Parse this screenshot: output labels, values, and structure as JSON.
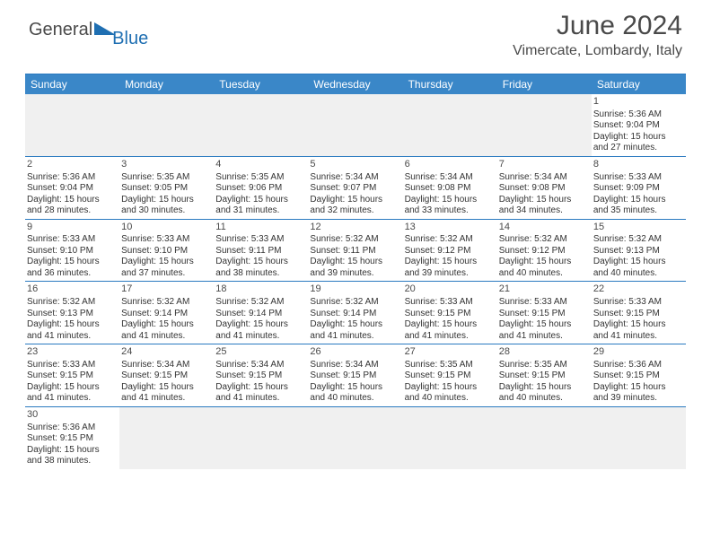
{
  "logo": {
    "word1": "General",
    "word2": "Blue"
  },
  "title": "June 2024",
  "subtitle": "Vimercate, Lombardy, Italy",
  "colors": {
    "header_bg": "#3a87c8",
    "header_text": "#ffffff",
    "rule": "#2a7ac0",
    "empty_bg": "#f0f0f0",
    "title_color": "#4a4a4a",
    "logo_blue": "#1f6fb2"
  },
  "day_names": [
    "Sunday",
    "Monday",
    "Tuesday",
    "Wednesday",
    "Thursday",
    "Friday",
    "Saturday"
  ],
  "weeks": [
    [
      {
        "blank": true
      },
      {
        "blank": true
      },
      {
        "blank": true
      },
      {
        "blank": true
      },
      {
        "blank": true
      },
      {
        "blank": true
      },
      {
        "n": "1",
        "sr": "5:36 AM",
        "ss": "9:04 PM",
        "dl": "15 hours and 27 minutes."
      }
    ],
    [
      {
        "n": "2",
        "sr": "5:36 AM",
        "ss": "9:04 PM",
        "dl": "15 hours and 28 minutes."
      },
      {
        "n": "3",
        "sr": "5:35 AM",
        "ss": "9:05 PM",
        "dl": "15 hours and 30 minutes."
      },
      {
        "n": "4",
        "sr": "5:35 AM",
        "ss": "9:06 PM",
        "dl": "15 hours and 31 minutes."
      },
      {
        "n": "5",
        "sr": "5:34 AM",
        "ss": "9:07 PM",
        "dl": "15 hours and 32 minutes."
      },
      {
        "n": "6",
        "sr": "5:34 AM",
        "ss": "9:08 PM",
        "dl": "15 hours and 33 minutes."
      },
      {
        "n": "7",
        "sr": "5:34 AM",
        "ss": "9:08 PM",
        "dl": "15 hours and 34 minutes."
      },
      {
        "n": "8",
        "sr": "5:33 AM",
        "ss": "9:09 PM",
        "dl": "15 hours and 35 minutes."
      }
    ],
    [
      {
        "n": "9",
        "sr": "5:33 AM",
        "ss": "9:10 PM",
        "dl": "15 hours and 36 minutes."
      },
      {
        "n": "10",
        "sr": "5:33 AM",
        "ss": "9:10 PM",
        "dl": "15 hours and 37 minutes."
      },
      {
        "n": "11",
        "sr": "5:33 AM",
        "ss": "9:11 PM",
        "dl": "15 hours and 38 minutes."
      },
      {
        "n": "12",
        "sr": "5:32 AM",
        "ss": "9:11 PM",
        "dl": "15 hours and 39 minutes."
      },
      {
        "n": "13",
        "sr": "5:32 AM",
        "ss": "9:12 PM",
        "dl": "15 hours and 39 minutes."
      },
      {
        "n": "14",
        "sr": "5:32 AM",
        "ss": "9:12 PM",
        "dl": "15 hours and 40 minutes."
      },
      {
        "n": "15",
        "sr": "5:32 AM",
        "ss": "9:13 PM",
        "dl": "15 hours and 40 minutes."
      }
    ],
    [
      {
        "n": "16",
        "sr": "5:32 AM",
        "ss": "9:13 PM",
        "dl": "15 hours and 41 minutes."
      },
      {
        "n": "17",
        "sr": "5:32 AM",
        "ss": "9:14 PM",
        "dl": "15 hours and 41 minutes."
      },
      {
        "n": "18",
        "sr": "5:32 AM",
        "ss": "9:14 PM",
        "dl": "15 hours and 41 minutes."
      },
      {
        "n": "19",
        "sr": "5:32 AM",
        "ss": "9:14 PM",
        "dl": "15 hours and 41 minutes."
      },
      {
        "n": "20",
        "sr": "5:33 AM",
        "ss": "9:15 PM",
        "dl": "15 hours and 41 minutes."
      },
      {
        "n": "21",
        "sr": "5:33 AM",
        "ss": "9:15 PM",
        "dl": "15 hours and 41 minutes."
      },
      {
        "n": "22",
        "sr": "5:33 AM",
        "ss": "9:15 PM",
        "dl": "15 hours and 41 minutes."
      }
    ],
    [
      {
        "n": "23",
        "sr": "5:33 AM",
        "ss": "9:15 PM",
        "dl": "15 hours and 41 minutes."
      },
      {
        "n": "24",
        "sr": "5:34 AM",
        "ss": "9:15 PM",
        "dl": "15 hours and 41 minutes."
      },
      {
        "n": "25",
        "sr": "5:34 AM",
        "ss": "9:15 PM",
        "dl": "15 hours and 41 minutes."
      },
      {
        "n": "26",
        "sr": "5:34 AM",
        "ss": "9:15 PM",
        "dl": "15 hours and 40 minutes."
      },
      {
        "n": "27",
        "sr": "5:35 AM",
        "ss": "9:15 PM",
        "dl": "15 hours and 40 minutes."
      },
      {
        "n": "28",
        "sr": "5:35 AM",
        "ss": "9:15 PM",
        "dl": "15 hours and 40 minutes."
      },
      {
        "n": "29",
        "sr": "5:36 AM",
        "ss": "9:15 PM",
        "dl": "15 hours and 39 minutes."
      }
    ],
    [
      {
        "n": "30",
        "sr": "5:36 AM",
        "ss": "9:15 PM",
        "dl": "15 hours and 38 minutes."
      },
      {
        "blank": true
      },
      {
        "blank": true
      },
      {
        "blank": true
      },
      {
        "blank": true
      },
      {
        "blank": true
      },
      {
        "blank": true
      }
    ]
  ],
  "labels": {
    "sunrise": "Sunrise:",
    "sunset": "Sunset:",
    "daylight": "Daylight:"
  }
}
